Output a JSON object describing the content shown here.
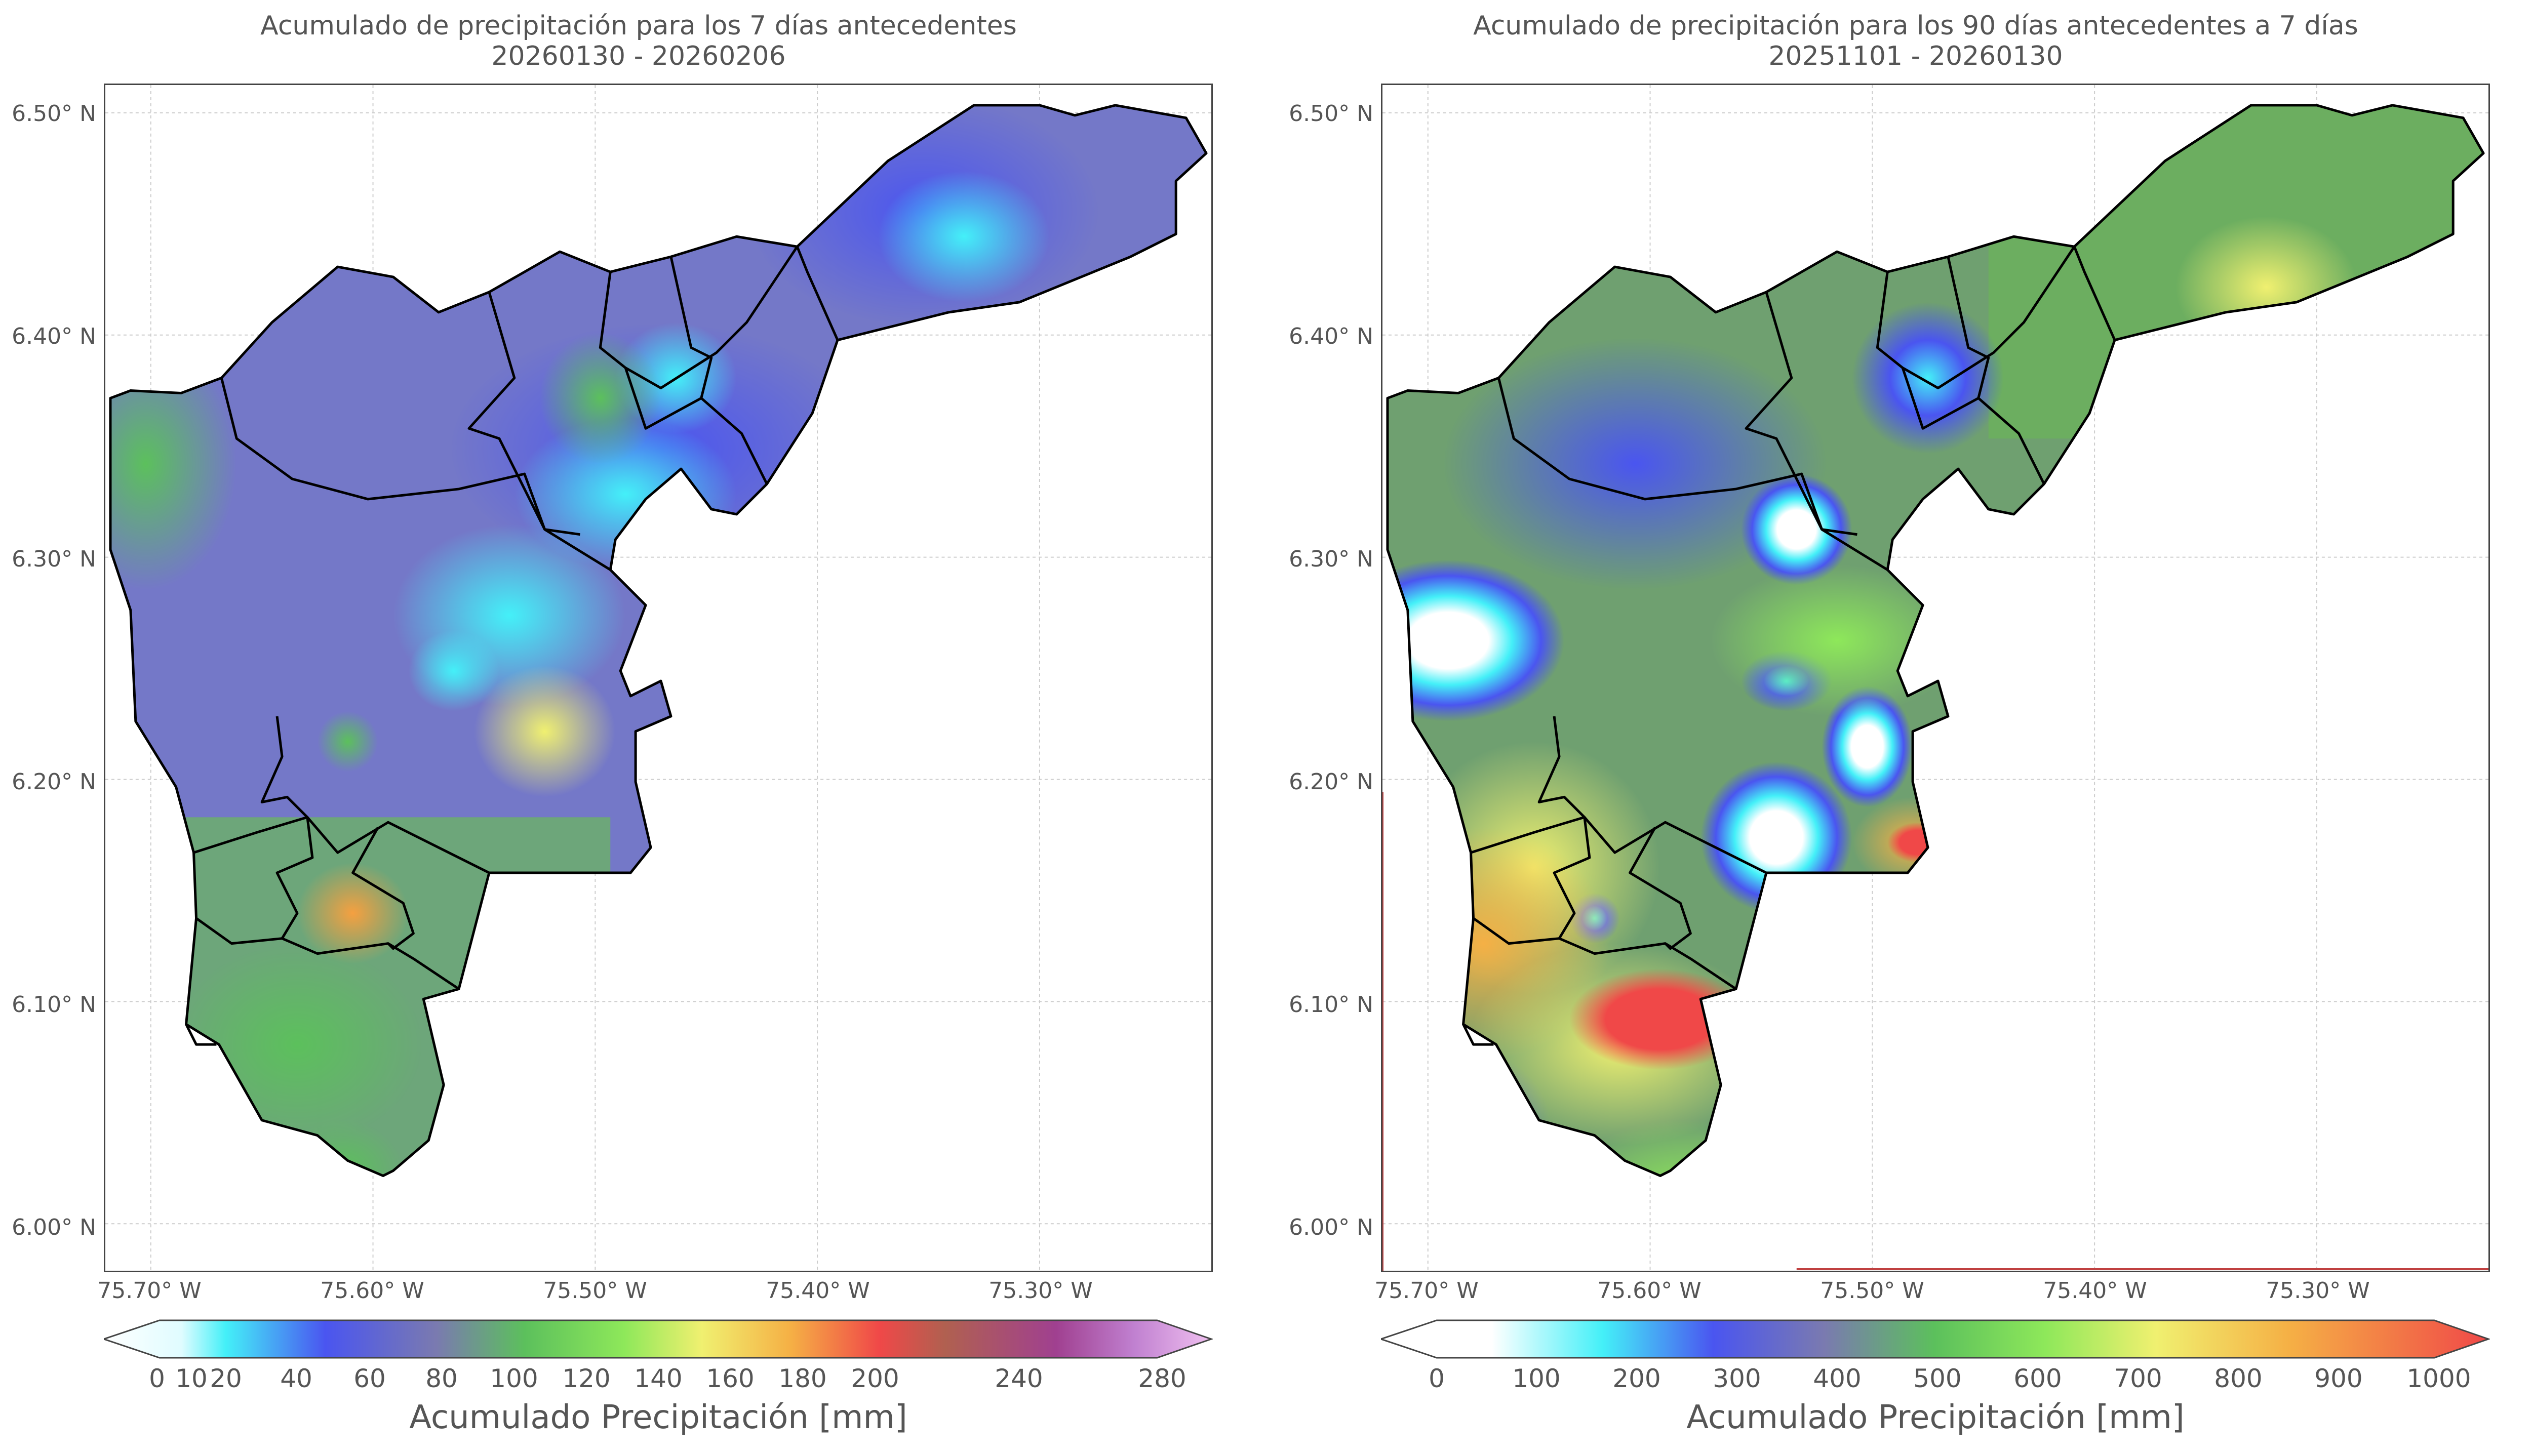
{
  "left": {
    "title_line1": "Acumulado de precipitación para los 7 días antecedentes",
    "title_line2": "20260130 - 20260206",
    "lat_labels": [
      "6.50° N",
      "6.40° N",
      "6.30° N",
      "6.20° N",
      "6.10° N",
      "6.00° N"
    ],
    "lon_labels": [
      "75.70° W",
      "75.60° W",
      "75.50° W",
      "75.40° W",
      "75.30° W"
    ],
    "colorbar_ticks": [
      "0",
      "10",
      "20",
      "40",
      "60",
      "80",
      "100",
      "120",
      "140",
      "160",
      "180",
      "200",
      "240",
      "280"
    ],
    "colorbar_title": "Acumulado Precipitación [mm]",
    "colors": [
      "#ffffff",
      "#44f0f8",
      "#4a55f0",
      "#7a7ab0",
      "#5cc05c",
      "#8ee85a",
      "#f0f070",
      "#f5b045",
      "#f04848",
      "#b05050",
      "#a04090",
      "#c080d0",
      "#f0c0f0"
    ]
  },
  "right": {
    "title_line1": "Acumulado de precipitación para los 90 días antecedentes a 7 días",
    "title_line2": "20251101 - 20260130",
    "lat_labels": [
      "6.50° N",
      "6.40° N",
      "6.30° N",
      "6.20° N",
      "6.10° N",
      "6.00° N"
    ],
    "lon_labels": [
      "75.70° W",
      "75.60° W",
      "75.50° W",
      "75.40° W",
      "75.30° W"
    ],
    "colorbar_ticks": [
      "0",
      "100",
      "200",
      "300",
      "400",
      "500",
      "600",
      "700",
      "800",
      "900",
      "1000"
    ],
    "colorbar_title": "Acumulado Precipitación [mm]",
    "colors": [
      "#ffffff",
      "#44f0f8",
      "#4a55f0",
      "#7a7ab0",
      "#5cc05c",
      "#8ee85a",
      "#f0f070",
      "#f5b045",
      "#f04848"
    ]
  }
}
